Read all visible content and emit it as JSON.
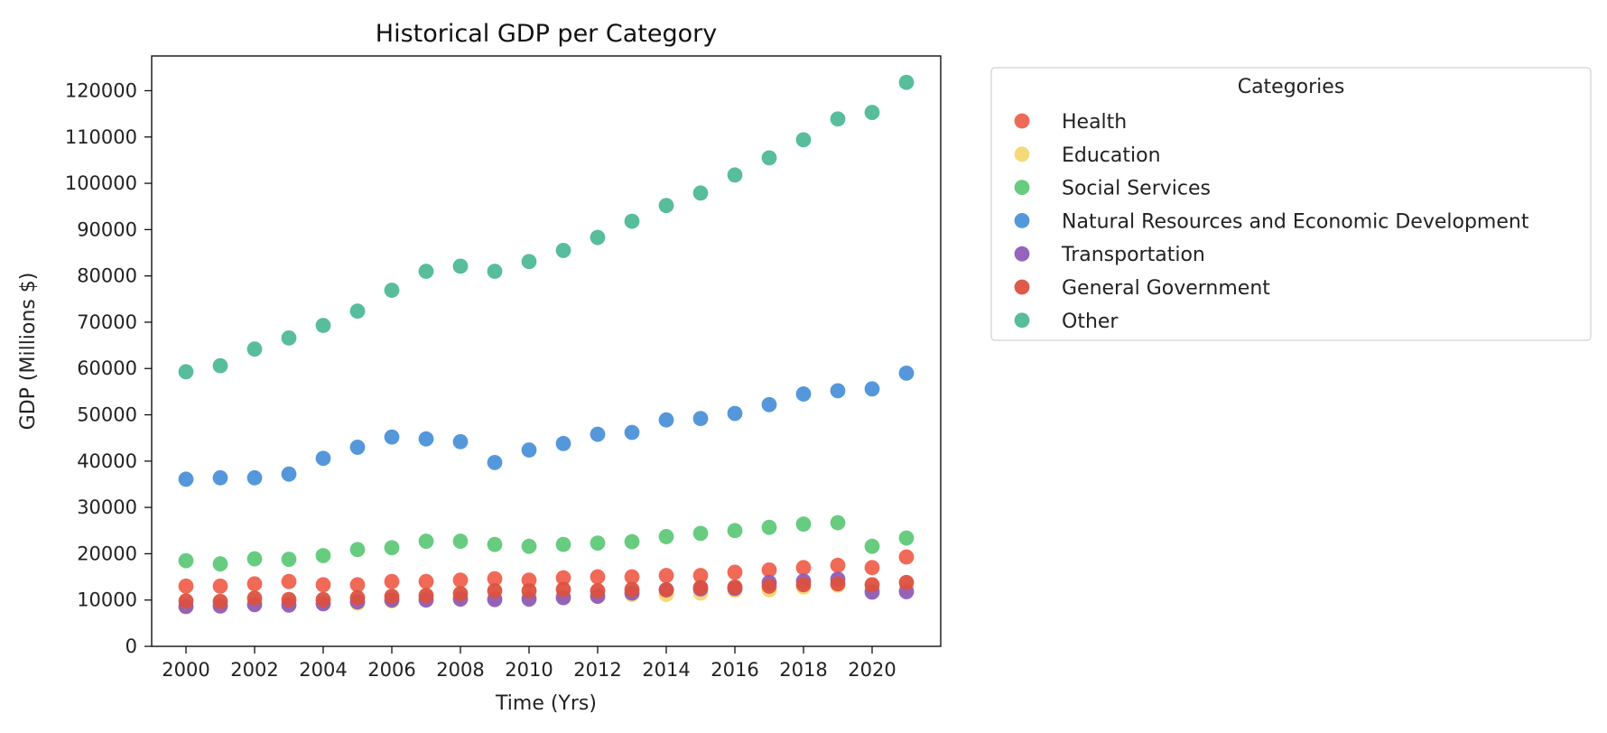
{
  "chart_data": {
    "type": "scatter",
    "title": "Historical GDP per Category",
    "xlabel": "Time (Yrs)",
    "ylabel": "GDP (Millions $)",
    "xlim": [
      1999,
      2022
    ],
    "ylim": [
      0,
      127500
    ],
    "x_ticks": [
      2000,
      2002,
      2004,
      2006,
      2008,
      2010,
      2012,
      2014,
      2016,
      2018,
      2020
    ],
    "y_ticks": [
      0,
      10000,
      20000,
      30000,
      40000,
      50000,
      60000,
      70000,
      80000,
      90000,
      100000,
      110000,
      120000
    ],
    "x_tick_labels": [
      "2000",
      "2002",
      "2004",
      "2006",
      "2008",
      "2010",
      "2012",
      "2014",
      "2016",
      "2018",
      "2020"
    ],
    "y_tick_labels": [
      "0",
      "10000",
      "20000",
      "30000",
      "40000",
      "50000",
      "60000",
      "70000",
      "80000",
      "90000",
      "100000",
      "110000",
      "120000"
    ],
    "grid": false,
    "legend": {
      "title": "Categories",
      "placement": "outside-right-top"
    },
    "x": [
      2000,
      2001,
      2002,
      2003,
      2004,
      2005,
      2006,
      2007,
      2008,
      2009,
      2010,
      2011,
      2012,
      2013,
      2014,
      2015,
      2016,
      2017,
      2018,
      2019,
      2020,
      2021
    ],
    "series": [
      {
        "name": "Health",
        "color": "#f0604d",
        "values": [
          13000,
          13000,
          13500,
          14000,
          13300,
          13300,
          14000,
          14000,
          14300,
          14600,
          14300,
          14800,
          15000,
          15000,
          15300,
          15300,
          16000,
          16500,
          17000,
          17500,
          17000,
          19300
        ]
      },
      {
        "name": "Education",
        "color": "#f5d76e",
        "values": [
          8600,
          8800,
          9200,
          9200,
          9300,
          9300,
          9800,
          10500,
          10500,
          10500,
          10700,
          10900,
          10900,
          11200,
          11200,
          11500,
          12100,
          12200,
          12800,
          13200,
          12300,
          12500
        ]
      },
      {
        "name": "Social Services",
        "color": "#5dc977",
        "values": [
          18500,
          17800,
          18900,
          18800,
          19600,
          20900,
          21300,
          22700,
          22700,
          22000,
          21600,
          22000,
          22300,
          22600,
          23700,
          24400,
          25000,
          25700,
          26400,
          26700,
          21600,
          23400
        ]
      },
      {
        "name": "Natural Resources and Economic Development",
        "color": "#4a90d9",
        "values": [
          36100,
          36400,
          36400,
          37200,
          40600,
          43000,
          45200,
          44800,
          44200,
          39700,
          42400,
          43800,
          45800,
          46200,
          48900,
          49200,
          50300,
          52200,
          54500,
          55200,
          55600,
          59000
        ]
      },
      {
        "name": "Transportation",
        "color": "#8e5bb8",
        "values": [
          8600,
          8700,
          9000,
          8900,
          9200,
          9600,
          10000,
          10000,
          10200,
          10100,
          10200,
          10500,
          10800,
          11500,
          12200,
          12400,
          12500,
          13800,
          14100,
          14500,
          11700,
          11800
        ]
      },
      {
        "name": "General Government",
        "color": "#dc5040",
        "values": [
          9800,
          9700,
          10400,
          10100,
          10100,
          10500,
          10800,
          11000,
          11400,
          12000,
          12000,
          12300,
          12000,
          12300,
          12200,
          12700,
          12800,
          13000,
          13300,
          13500,
          13300,
          13800
        ]
      },
      {
        "name": "Other",
        "color": "#4db996",
        "values": [
          59300,
          60600,
          64200,
          66600,
          69300,
          72400,
          76900,
          81000,
          82100,
          81000,
          83100,
          85500,
          88300,
          91800,
          95200,
          97900,
          101800,
          105500,
          109400,
          113900,
          115300,
          121800
        ]
      }
    ]
  }
}
